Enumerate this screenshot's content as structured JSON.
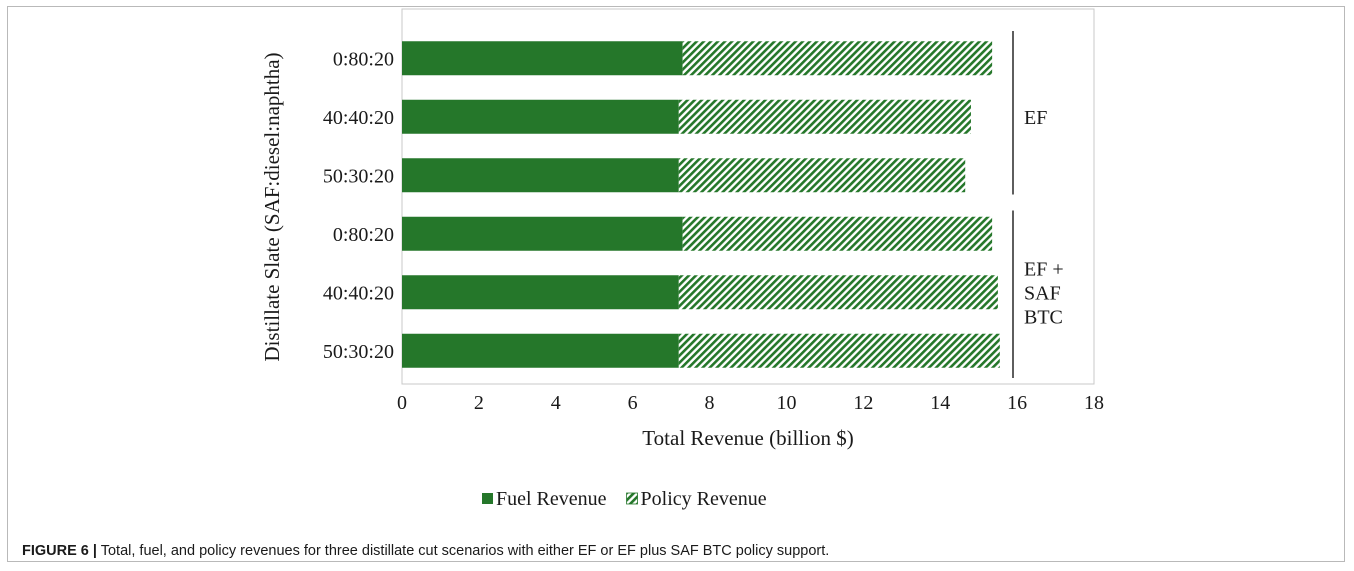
{
  "chart_data": {
    "type": "bar",
    "orientation": "horizontal",
    "stacked": true,
    "categories": [
      "0:80:20",
      "40:40:20",
      "50:30:20",
      "0:80:20",
      "40:40:20",
      "50:30:20"
    ],
    "series": [
      {
        "name": "Fuel Revenue",
        "values": [
          7.3,
          7.2,
          7.2,
          7.3,
          7.2,
          7.2
        ]
      },
      {
        "name": "Policy Revenue",
        "values": [
          8.05,
          7.6,
          7.45,
          8.05,
          8.3,
          8.35
        ]
      }
    ],
    "groups": [
      {
        "label_lines": [
          "EF"
        ],
        "rows": [
          0,
          1,
          2
        ]
      },
      {
        "label_lines": [
          "EF +",
          "SAF",
          "BTC"
        ],
        "rows": [
          3,
          4,
          5
        ]
      }
    ],
    "xlabel": "Total Revenue (billion $)",
    "ylabel": "Distillate Slate (SAF:diesel:naphtha)",
    "xlim": [
      0,
      18
    ],
    "xticks": [
      0,
      2,
      4,
      6,
      8,
      10,
      12,
      14,
      16,
      18
    ],
    "grid": false,
    "legend_position": "bottom",
    "colors": {
      "fuel": "#25772a",
      "policy_hatch": "#25772a"
    }
  },
  "figure_caption": {
    "label": "FIGURE 6 |",
    "text": " Total, fuel, and policy revenues for three distillate cut scenarios with either EF or EF plus SAF BTC policy support."
  }
}
